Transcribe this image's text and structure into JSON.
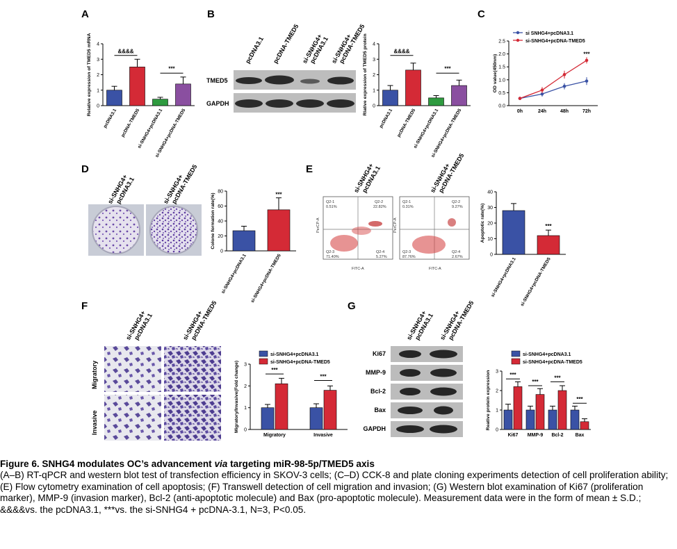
{
  "panels": {
    "A": {
      "letter": "A",
      "ylabel": "Relative expression of TMED5 mRNA",
      "yticks": [
        "0",
        "1",
        "2",
        "3",
        "4"
      ],
      "sig1": "&&&&",
      "sig2": "***",
      "categories": [
        "pcDNA3.1",
        "pcDNA-TMED5",
        "si-SNHG4+pcDNA3.1",
        "si-SNHG4+pcDNA-TMED5"
      ]
    },
    "B": {
      "letter": "B",
      "lanes": [
        "pcDNA3.1",
        "pcDNA-TMED5",
        "si-SNHG4+\npcDNA3.1",
        "si-SNHG4+\npcDNA-TMED5"
      ],
      "blot_rows": [
        "TMED5",
        "GAPDH"
      ],
      "ylabel": "Rlative expression of TMED5 protein",
      "yticks": [
        "0",
        "1",
        "2",
        "3",
        "4"
      ],
      "sig1": "&&&&",
      "sig2": "***",
      "categories": [
        "pcDNA3.1",
        "pcDNA-TMED5",
        "si-SNHG4+pcDNA3.1",
        "si-SNHG4+pcDNA-TMED5"
      ]
    },
    "C": {
      "letter": "C",
      "ylabel": "OD value(450nm)",
      "yticks": [
        "0.0",
        "0.5",
        "1.0",
        "1.5",
        "2.0",
        "2.5"
      ],
      "xticks": [
        "0h",
        "24h",
        "48h",
        "72h"
      ],
      "legend": [
        "si SNHG4+pcDNA3.1",
        "si-SNHG4+pcDNA-TMED5"
      ],
      "sig": "***"
    },
    "D": {
      "letter": "D",
      "images": [
        "si-SNHG4+\npcDNA3.1",
        "si-SNHG4+\npcDNA-TMED5"
      ],
      "ylabel": "Colone formation rate(%)",
      "yticks": [
        "0",
        "20",
        "40",
        "60",
        "80"
      ],
      "sig": "***",
      "categories": [
        "si-SNHG4+pcDNA3.1",
        "si-SNHG4+pcDNA-TMED5"
      ]
    },
    "E": {
      "letter": "E",
      "images": [
        "si-SNHG4+\npcDNA3.1",
        "si-SNHG4+\npcDNA-TMED5"
      ],
      "flow1": {
        "q1": "Q2-1\n0.51%",
        "q2": "Q2-2\n22.82%",
        "q3": "Q2-3\n71.40%",
        "q4": "Q2-4\n5.27%"
      },
      "flow2": {
        "q1": "Q2-1\n0.31%",
        "q2": "Q2-2\n9.27%",
        "q3": "Q2-3\n87.76%",
        "q4": "Q2-4\n2.67%"
      },
      "flow_xlabel": "FITC-A",
      "flow_ylabel": "PerCP-A",
      "ylabel": "Apoptotic rate(%)",
      "yticks": [
        "0",
        "10",
        "20",
        "30",
        "40"
      ],
      "sig": "***",
      "categories": [
        "si-SNHG4+pcDNA3.1",
        "si-SNHG4+pcDNA-TMED5"
      ]
    },
    "F": {
      "letter": "F",
      "cols": [
        "si-SNHG4+\npcDNA3.1",
        "si-SNHG4+\npcDNA-TMED5"
      ],
      "rows": [
        "Migratory",
        "Invasive"
      ],
      "legend": [
        "si-SNHG4+pcDNA3.1",
        "si-SNHG4+pcDNA-TMED5"
      ],
      "ylabel": "Migratory/Invasive(Fold change)",
      "yticks": [
        "0",
        "1",
        "2",
        "3"
      ],
      "sig": [
        "***",
        "***"
      ],
      "categories": [
        "Migratory",
        "Invasive"
      ]
    },
    "G": {
      "letter": "G",
      "lanes": [
        "si-SNHG4+\npcDNA3.1",
        "si-SNHG4+\npcDNA-TMED5"
      ],
      "blot_rows": [
        "Ki67",
        "MMP-9",
        "Bcl-2",
        "Bax",
        "GAPDH"
      ],
      "legend": [
        "si-SNHG4+pcDNA3.1",
        "si-SNHG4+pcDNA-TMED5"
      ],
      "ylabel": "Reative protein expression",
      "yticks": [
        "0",
        "1",
        "2",
        "3"
      ],
      "sig": [
        "***",
        "***",
        "***",
        "***"
      ],
      "categories": [
        "Ki67",
        "MMP-9",
        "Bcl-2",
        "Bax"
      ]
    }
  },
  "chart_data": [
    {
      "panel": "A",
      "type": "bar",
      "categories": [
        "pcDNA3.1",
        "pcDNA-TMED5",
        "si-SNHG4+pcDNA3.1",
        "si-SNHG4+pcDNA-TMED5"
      ],
      "values": [
        1.0,
        2.5,
        0.42,
        1.4
      ],
      "errors": [
        0.25,
        0.5,
        0.12,
        0.45
      ],
      "ylim": [
        0,
        4
      ],
      "ylabel": "Relative expression of TMED5 mRNA",
      "colors": [
        "#3a52a5",
        "#d42a36",
        "#2e9a3f",
        "#8a4fa0"
      ]
    },
    {
      "panel": "B",
      "type": "bar",
      "categories": [
        "pcDNA3.1",
        "pcDNA-TMED5",
        "si-SNHG4+pcDNA3.1",
        "si-SNHG4+pcDNA-TMED5"
      ],
      "values": [
        1.0,
        2.3,
        0.5,
        1.3
      ],
      "errors": [
        0.3,
        0.45,
        0.15,
        0.35
      ],
      "ylim": [
        0,
        4
      ],
      "ylabel": "Rlative expression of TMED5 protein",
      "colors": [
        "#3a52a5",
        "#d42a36",
        "#2e9a3f",
        "#8a4fa0"
      ]
    },
    {
      "panel": "C",
      "type": "line",
      "x": [
        "0h",
        "24h",
        "48h",
        "72h"
      ],
      "ylim": [
        0,
        2.5
      ],
      "ylabel": "OD value(450nm)",
      "series": [
        {
          "name": "si SNHG4+pcDNA3.1",
          "values": [
            0.28,
            0.45,
            0.75,
            0.95
          ],
          "errors": [
            0.05,
            0.1,
            0.12,
            0.15
          ],
          "color": "#3a52a5"
        },
        {
          "name": "si-SNHG4+pcDNA-TMED5",
          "values": [
            0.28,
            0.6,
            1.2,
            1.75
          ],
          "errors": [
            0.05,
            0.12,
            0.15,
            0.12
          ],
          "color": "#d42a36"
        }
      ]
    },
    {
      "panel": "D",
      "type": "bar",
      "categories": [
        "si-SNHG4+pcDNA3.1",
        "si-SNHG4+pcDNA-TMED5"
      ],
      "values": [
        27,
        55
      ],
      "errors": [
        6,
        16
      ],
      "ylim": [
        0,
        80
      ],
      "ylabel": "Colone formation rate(%)",
      "colors": [
        "#3a52a5",
        "#d42a36"
      ]
    },
    {
      "panel": "E",
      "type": "bar",
      "categories": [
        "si-SNHG4+pcDNA3.1",
        "si-SNHG4+pcDNA-TMED5"
      ],
      "values": [
        28,
        12
      ],
      "errors": [
        4.5,
        3.5
      ],
      "ylim": [
        0,
        40
      ],
      "ylabel": "Apoptotic rate(%)",
      "colors": [
        "#3a52a5",
        "#d42a36"
      ]
    },
    {
      "panel": "F",
      "type": "bar",
      "categories": [
        "Migratory",
        "Invasive"
      ],
      "ylim": [
        0,
        3
      ],
      "ylabel": "Migratory/Invasive(Fold change)",
      "series": [
        {
          "name": "si-SNHG4+pcDNA3.1",
          "values": [
            1.0,
            1.0
          ],
          "errors": [
            0.15,
            0.18
          ],
          "color": "#3a52a5"
        },
        {
          "name": "si-SNHG4+pcDNA-TMED5",
          "values": [
            2.1,
            1.8
          ],
          "errors": [
            0.25,
            0.2
          ],
          "color": "#d42a36"
        }
      ]
    },
    {
      "panel": "G",
      "type": "bar",
      "categories": [
        "Ki67",
        "MMP-9",
        "Bcl-2",
        "Bax"
      ],
      "ylim": [
        0,
        3
      ],
      "ylabel": "Reative protein expression",
      "series": [
        {
          "name": "si-SNHG4+pcDNA3.1",
          "values": [
            1.0,
            1.0,
            1.0,
            1.0
          ],
          "errors": [
            0.3,
            0.2,
            0.2,
            0.2
          ],
          "color": "#3a52a5"
        },
        {
          "name": "si-SNHG4+pcDNA-TMED5",
          "values": [
            2.2,
            1.8,
            2.0,
            0.4
          ],
          "errors": [
            0.25,
            0.3,
            0.25,
            0.15
          ],
          "color": "#d42a36"
        }
      ]
    }
  ],
  "caption": {
    "title_pre": "Figure 6. SNHG4 modulates OC’s advancement ",
    "title_em": "via",
    "title_post": " targeting miR-98-5p/TMED5 axis",
    "body": "(A–B) RT-qPCR and western blot test of transfection efficiency in SKOV-3 cells; (C–D) CCK-8 and plate cloning experiments detection of cell proliferation ability; (E) Flow cytometry examination of cell apoptosis; (F) Transwell detection of cell migration and invasion; (G) Western blot examination of Ki67 (proliferation marker), MMP-9 (invasion marker), Bcl-2 (anti-apoptotic molecule) and Bax (pro-apoptotic molecule). Measurement data were in the form of mean ± S.D.; &&&&vs. the pcDNA3.1, ***vs. the si-SNHG4 + pcDNA-3.1, N=3, P<0.05."
  }
}
